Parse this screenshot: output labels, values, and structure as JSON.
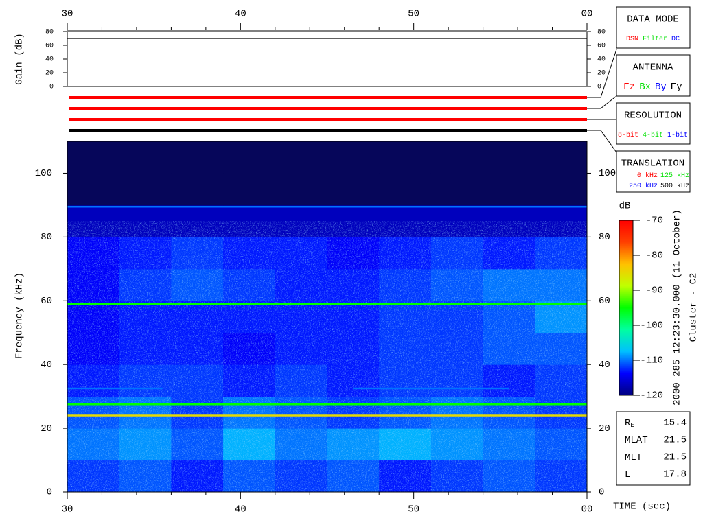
{
  "chart_data": [
    {
      "type": "line",
      "ylabel": "Gain (dB)",
      "x": [
        30,
        60
      ],
      "values": [
        70,
        70
      ],
      "color": "#000000",
      "xlim": [
        30,
        60
      ],
      "xticks": [
        30,
        40,
        50,
        {
          "value": 60,
          "label": "00"
        }
      ],
      "xminor_ticks": [
        32,
        34,
        36,
        38,
        42,
        44,
        46,
        48,
        52,
        54,
        56,
        58
      ],
      "ylim": [
        0,
        80
      ],
      "yticks": [
        0,
        20,
        40,
        60,
        80
      ]
    },
    {
      "type": "heatmap",
      "ylabel": "Frequency (kHz)",
      "xlabel": "TIME (sec)",
      "xbins": [
        30,
        33,
        36,
        39,
        42,
        45,
        48,
        51,
        54,
        57,
        60
      ],
      "ybins": [
        0,
        10,
        20,
        30,
        40,
        50,
        60,
        70,
        80,
        90,
        100,
        110
      ],
      "z": [
        [
          -112,
          -111,
          -113,
          -111,
          -112,
          -111,
          -113,
          -112,
          -111,
          -112
        ],
        [
          -110,
          -109,
          -111,
          -108,
          -110,
          -109,
          -108,
          -109,
          -110,
          -111
        ],
        [
          -111,
          -110,
          -112,
          -110,
          -111,
          -112,
          -111,
          -110,
          -111,
          -112
        ],
        [
          -113,
          -112,
          -112,
          -113,
          -112,
          -113,
          -112,
          -112,
          -113,
          -112
        ],
        [
          -114,
          -113,
          -113,
          -114,
          -113,
          -113,
          -112,
          -112,
          -111,
          -111
        ],
        [
          -114,
          -113,
          -113,
          -113,
          -113,
          -113,
          -112,
          -112,
          -111,
          -109
        ],
        [
          -114,
          -112,
          -111,
          -112,
          -113,
          -113,
          -112,
          -111,
          -110,
          -110
        ],
        [
          -114,
          -113,
          -112,
          -113,
          -113,
          -114,
          -113,
          -112,
          -113,
          -112
        ],
        [
          -117,
          -117,
          -117,
          -117,
          -117,
          -117,
          -117,
          -117,
          -117,
          -117
        ],
        [
          -125,
          -125,
          -125,
          -125,
          -125,
          -125,
          -125,
          -125,
          -125,
          -125
        ],
        [
          -125,
          -125,
          -125,
          -125,
          -125,
          -125,
          -125,
          -125,
          -125,
          -125
        ]
      ],
      "lines": [
        {
          "y": 89.5,
          "x": [
            30,
            60
          ],
          "value": -110
        },
        {
          "y": 59,
          "x": [
            30,
            60
          ],
          "value": -95
        },
        {
          "y": 32.5,
          "x": [
            30,
            35.5
          ],
          "value": -110
        },
        {
          "y": 32.5,
          "x": [
            46.5,
            55.5
          ],
          "value": -110
        },
        {
          "y": 27.5,
          "x": [
            30,
            60
          ],
          "value": -95
        },
        {
          "y": 24,
          "x": [
            30,
            60
          ],
          "value": -85
        }
      ],
      "xlim": [
        30,
        60
      ],
      "xticks": [
        30,
        40,
        50,
        {
          "value": 60,
          "label": "00"
        }
      ],
      "xminor_ticks": [
        32,
        34,
        36,
        38,
        42,
        44,
        46,
        48,
        52,
        54,
        56,
        58
      ],
      "ylim": [
        0,
        110
      ],
      "yticks": [
        0,
        20,
        40,
        60,
        80,
        100
      ],
      "colorbar": {
        "label": "dB",
        "zlim": [
          -120,
          -70
        ],
        "ticks": [
          -120,
          -110,
          -100,
          -90,
          -80,
          -70
        ],
        "colormap": [
          "#000080",
          "#0000ff",
          "#00c0ff",
          "#00ffa0",
          "#00ff00",
          "#c0ff00",
          "#ffc000",
          "#ff4000",
          "#ff0000"
        ],
        "under_color": "#06065a"
      }
    }
  ],
  "status_bars": [
    {
      "color": "#ff0000"
    },
    {
      "color": "#ff0000"
    },
    {
      "color": "#ff0000"
    },
    {
      "color": "#000000"
    }
  ],
  "panels": [
    {
      "title": "DATA MODE",
      "items": [
        {
          "text": "DSN",
          "color": "#ff0000"
        },
        {
          "text": "Filter",
          "color": "#00e000"
        },
        {
          "text": "DC",
          "color": "#0000ff"
        }
      ]
    },
    {
      "title": "ANTENNA",
      "items": [
        {
          "text": "Ez",
          "color": "#ff0000"
        },
        {
          "text": "Bx",
          "color": "#00e000"
        },
        {
          "text": "By",
          "color": "#0000ff"
        },
        {
          "text": "Ey",
          "color": "#000000"
        }
      ]
    },
    {
      "title": "RESOLUTION",
      "items": [
        {
          "text": "8-bit",
          "color": "#ff0000"
        },
        {
          "text": "4-bit",
          "color": "#00e000"
        },
        {
          "text": "1-bit",
          "color": "#0000ff"
        }
      ]
    },
    {
      "title": "TRANSLATION",
      "items": [
        {
          "text": "0 kHz",
          "color": "#ff0000"
        },
        {
          "text": "125 kHz",
          "color": "#00e000"
        },
        {
          "text": "250 kHz",
          "color": "#0000ff"
        },
        {
          "text": "500 kHz",
          "color": "#000000"
        }
      ]
    }
  ],
  "timestamp": "2000 285 12:23:30.000 (11 October)",
  "spacecraft": "Cluster - C2",
  "info": [
    {
      "label": "R",
      "sub": "E",
      "value": 15.4
    },
    {
      "label": "MLAT",
      "value": 21.5
    },
    {
      "label": "MLT",
      "value": 21.5
    },
    {
      "label": "L",
      "value": 17.8
    }
  ]
}
